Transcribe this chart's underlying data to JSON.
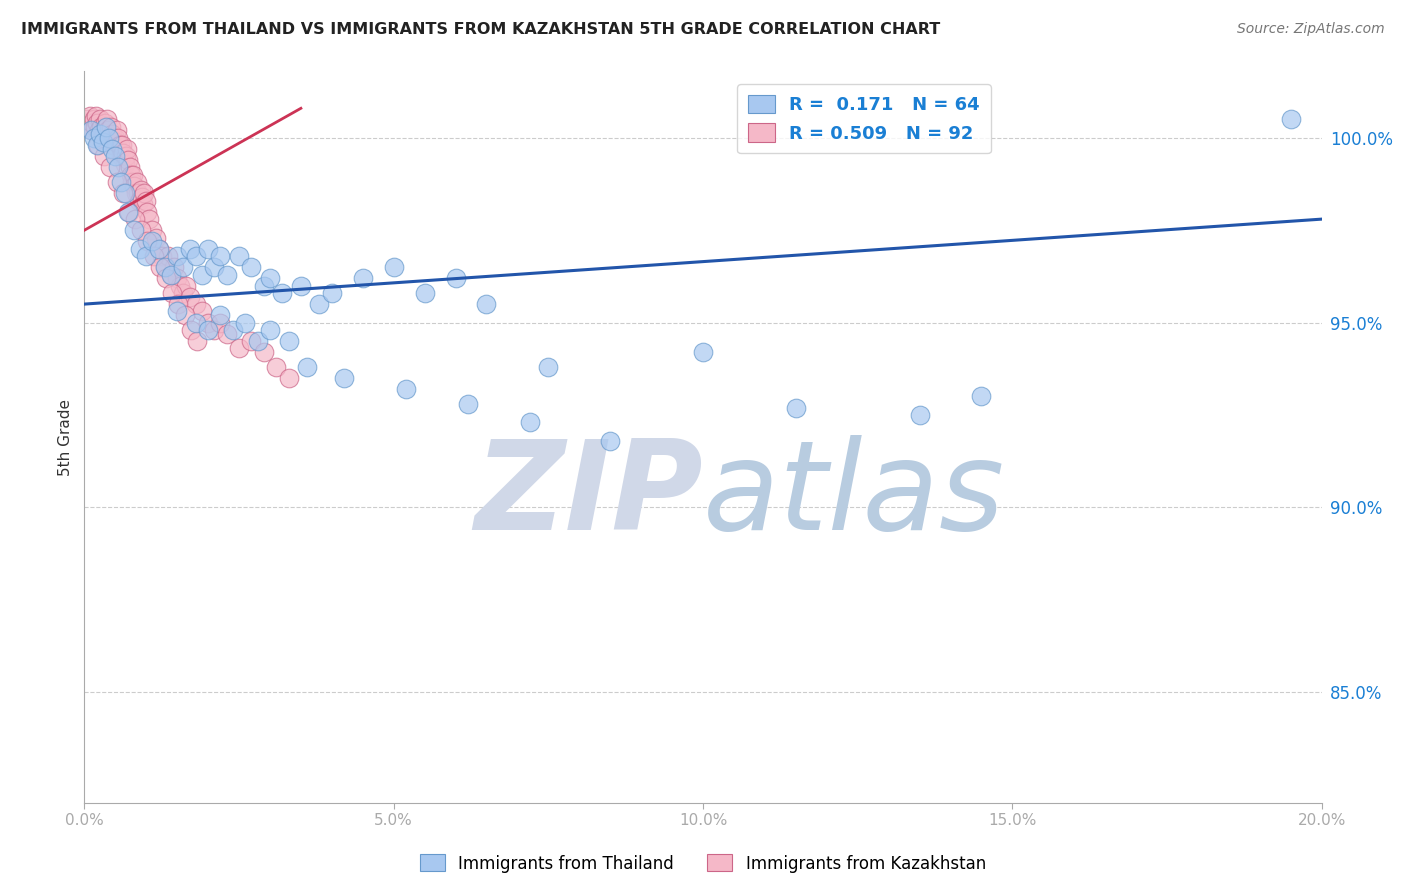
{
  "title": "IMMIGRANTS FROM THAILAND VS IMMIGRANTS FROM KAZAKHSTAN 5TH GRADE CORRELATION CHART",
  "source": "Source: ZipAtlas.com",
  "ylabel": "5th Grade",
  "xmin": 0.0,
  "xmax": 20.0,
  "ymin": 82.0,
  "ymax": 101.8,
  "yticks": [
    85.0,
    90.0,
    95.0,
    100.0
  ],
  "xticks": [
    0.0,
    5.0,
    10.0,
    15.0,
    20.0
  ],
  "thailand_color": "#a8c8f0",
  "thailand_edge": "#6699cc",
  "kazakhstan_color": "#f5b8c8",
  "kazakhstan_edge": "#cc6688",
  "blue_line_color": "#2255aa",
  "red_line_color": "#cc3355",
  "watermark_zip": "ZIP",
  "watermark_atlas": "atlas",
  "watermark_zip_color": "#d0d8e8",
  "watermark_atlas_color": "#b8cce0",
  "thailand_x": [
    0.1,
    0.15,
    0.2,
    0.25,
    0.3,
    0.35,
    0.4,
    0.45,
    0.5,
    0.55,
    0.6,
    0.65,
    0.7,
    0.8,
    0.9,
    1.0,
    1.1,
    1.2,
    1.3,
    1.4,
    1.5,
    1.6,
    1.7,
    1.8,
    1.9,
    2.0,
    2.1,
    2.2,
    2.3,
    2.5,
    2.7,
    2.9,
    3.0,
    3.2,
    3.5,
    3.8,
    4.0,
    4.5,
    5.0,
    5.5,
    6.0,
    6.5,
    7.5,
    10.0,
    11.5,
    13.5,
    14.5,
    19.5
  ],
  "thailand_y": [
    100.2,
    100.0,
    99.8,
    100.1,
    99.9,
    100.3,
    100.0,
    99.7,
    99.5,
    99.2,
    98.8,
    98.5,
    98.0,
    97.5,
    97.0,
    96.8,
    97.2,
    97.0,
    96.5,
    96.3,
    96.8,
    96.5,
    97.0,
    96.8,
    96.3,
    97.0,
    96.5,
    96.8,
    96.3,
    96.8,
    96.5,
    96.0,
    96.2,
    95.8,
    96.0,
    95.5,
    95.8,
    96.2,
    96.5,
    95.8,
    96.2,
    95.5,
    93.8,
    94.2,
    92.7,
    92.5,
    93.0,
    100.5
  ],
  "thailand_x2": [
    1.5,
    1.8,
    2.0,
    2.2,
    2.4,
    2.6,
    2.8,
    3.0,
    3.3,
    3.6,
    4.2,
    5.2,
    6.2,
    7.2,
    8.5
  ],
  "thailand_y2": [
    95.3,
    95.0,
    94.8,
    95.2,
    94.8,
    95.0,
    94.5,
    94.8,
    94.5,
    93.8,
    93.5,
    93.2,
    92.8,
    92.3,
    91.8
  ],
  "kazakhstan_x": [
    0.05,
    0.07,
    0.09,
    0.11,
    0.13,
    0.15,
    0.17,
    0.19,
    0.21,
    0.23,
    0.25,
    0.27,
    0.29,
    0.31,
    0.33,
    0.35,
    0.37,
    0.39,
    0.41,
    0.43,
    0.45,
    0.47,
    0.49,
    0.51,
    0.53,
    0.55,
    0.57,
    0.59,
    0.61,
    0.63,
    0.65,
    0.67,
    0.69,
    0.71,
    0.73,
    0.75,
    0.77,
    0.79,
    0.81,
    0.83,
    0.85,
    0.87,
    0.89,
    0.91,
    0.93,
    0.95,
    0.97,
    0.99,
    1.01,
    1.05,
    1.1,
    1.15,
    1.2,
    1.25,
    1.3,
    1.35,
    1.4,
    1.45,
    1.5,
    1.55,
    1.6,
    1.65,
    1.7,
    1.8,
    1.9,
    2.0,
    2.1,
    2.2,
    2.3,
    2.5,
    2.7,
    2.9,
    3.1,
    3.3,
    0.22,
    0.32,
    0.42,
    0.52,
    0.62,
    0.72,
    0.82,
    0.92,
    1.02,
    1.12,
    1.22,
    1.32,
    1.42,
    1.52,
    1.62,
    1.72,
    1.82
  ],
  "kazakhstan_y": [
    100.5,
    100.3,
    100.6,
    100.2,
    100.4,
    100.5,
    100.3,
    100.6,
    100.4,
    100.2,
    100.5,
    100.3,
    100.0,
    100.2,
    100.4,
    100.3,
    100.5,
    100.2,
    100.0,
    100.3,
    100.1,
    99.8,
    100.0,
    99.9,
    100.2,
    100.0,
    99.8,
    99.5,
    99.8,
    99.6,
    99.3,
    99.5,
    99.7,
    99.4,
    99.2,
    99.0,
    98.8,
    99.0,
    98.7,
    98.5,
    98.8,
    98.5,
    98.3,
    98.6,
    98.4,
    98.2,
    98.5,
    98.3,
    98.0,
    97.8,
    97.5,
    97.3,
    97.0,
    96.8,
    96.5,
    96.8,
    96.3,
    96.5,
    96.2,
    96.0,
    95.8,
    96.0,
    95.7,
    95.5,
    95.3,
    95.0,
    94.8,
    95.0,
    94.7,
    94.3,
    94.5,
    94.2,
    93.8,
    93.5,
    99.8,
    99.5,
    99.2,
    98.8,
    98.5,
    98.0,
    97.8,
    97.5,
    97.2,
    96.8,
    96.5,
    96.2,
    95.8,
    95.5,
    95.2,
    94.8,
    94.5
  ],
  "blue_trend_x": [
    0.0,
    20.0
  ],
  "blue_trend_y": [
    95.5,
    97.8
  ],
  "red_trend_x": [
    0.0,
    3.5
  ],
  "red_trend_y": [
    97.5,
    100.8
  ]
}
